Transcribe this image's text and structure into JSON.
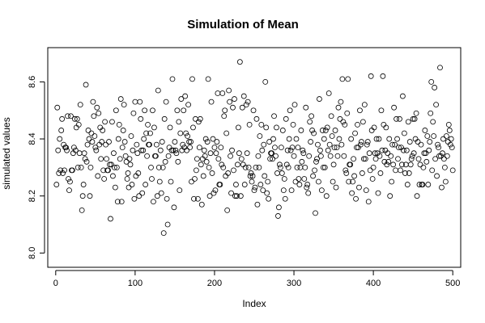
{
  "chart_data": {
    "type": "scatter",
    "title": "Simulation of Mean",
    "xlabel": "Index",
    "ylabel": "simulated values",
    "xlim": [
      -10,
      510
    ],
    "ylim": [
      7.95,
      8.72
    ],
    "x_ticks": [
      0,
      100,
      200,
      300,
      400,
      500
    ],
    "y_ticks": [
      8.0,
      8.2,
      8.4,
      8.6
    ],
    "x_tick_labels": [
      "0",
      "100",
      "200",
      "300",
      "400",
      "500"
    ],
    "y_tick_labels": [
      "8.0",
      "8.2",
      "8.4",
      "8.6"
    ],
    "grid": false,
    "legend": "none",
    "marker": "open-circle",
    "point_color": "#000000",
    "series": [
      {
        "values": [
          8.24,
          8.51,
          8.36,
          8.28,
          8.4,
          8.29,
          8.43,
          8.47,
          8.28,
          8.38,
          8.29,
          8.37,
          8.37,
          8.36,
          8.48,
          8.26,
          8.22,
          8.25,
          8.48,
          8.29,
          8.29,
          8.35,
          8.37,
          8.47,
          8.36,
          8.44,
          8.47,
          8.3,
          8.45,
          8.35,
          8.52,
          8.3,
          8.15,
          8.2,
          8.24,
          8.35,
          8.33,
          8.59,
          8.32,
          8.38,
          8.43,
          8.4,
          8.2,
          8.3,
          8.42,
          8.39,
          8.53,
          8.48,
          8.41,
          8.37,
          8.36,
          8.51,
          8.27,
          8.49,
          8.38,
          8.44,
          8.33,
          8.39,
          8.43,
          8.29,
          8.26,
          8.46,
          8.38,
          8.33,
          8.29,
          8.29,
          8.39,
          8.31,
          8.12,
          8.31,
          8.46,
          8.27,
          8.35,
          8.3,
          8.23,
          8.5,
          8.3,
          8.18,
          8.4,
          8.45,
          8.33,
          8.54,
          8.18,
          8.37,
          8.43,
          8.52,
          8.39,
          8.34,
          8.32,
          8.26,
          8.28,
          8.23,
          8.33,
          8.31,
          8.41,
          8.24,
          8.36,
          8.49,
          8.19,
          8.53,
          8.27,
          8.38,
          8.35,
          8.28,
          8.2,
          8.53,
          8.47,
          8.36,
          8.21,
          8.36,
          8.4,
          8.5,
          8.24,
          8.42,
          8.34,
          8.45,
          8.38,
          8.38,
          8.42,
          8.3,
          8.26,
          8.5,
          8.18,
          8.44,
          8.34,
          8.34,
          8.38,
          8.2,
          8.57,
          8.3,
          8.25,
          8.36,
          8.21,
          8.39,
          8.3,
          8.07,
          8.47,
          8.32,
          8.53,
          8.19,
          8.1,
          8.34,
          8.37,
          8.44,
          8.25,
          8.36,
          8.61,
          8.36,
          8.16,
          8.39,
          8.36,
          8.35,
          8.5,
          8.32,
          8.46,
          8.22,
          8.42,
          8.54,
          8.36,
          8.38,
          8.5,
          8.37,
          8.55,
          8.42,
          8.36,
          8.41,
          8.52,
          8.39,
          8.37,
          8.39,
          8.25,
          8.61,
          8.44,
          8.19,
          8.26,
          8.47,
          8.29,
          8.33,
          8.19,
          8.46,
          8.37,
          8.47,
          8.31,
          8.17,
          8.33,
          8.27,
          8.36,
          8.34,
          8.4,
          8.32,
          8.39,
          8.61,
          8.3,
          8.2,
          8.35,
          8.53,
          8.28,
          8.4,
          8.21,
          8.37,
          8.22,
          8.35,
          8.39,
          8.56,
          8.33,
          8.24,
          8.24,
          8.37,
          8.31,
          8.56,
          8.3,
          8.48,
          8.5,
          8.27,
          8.42,
          8.15,
          8.28,
          8.57,
          8.53,
          8.34,
          8.21,
          8.36,
          8.51,
          8.29,
          8.54,
          8.2,
          8.24,
          8.2,
          8.31,
          8.44,
          8.35,
          8.67,
          8.2,
          8.33,
          8.51,
          8.31,
          8.55,
          8.24,
          8.3,
          8.52,
          8.35,
          8.53,
          8.3,
          8.45,
          8.27,
          8.28,
          8.25,
          8.27,
          8.5,
          8.22,
          8.23,
          8.3,
          8.47,
          8.17,
          8.34,
          8.3,
          8.41,
          8.24,
          8.45,
          8.36,
          8.22,
          8.38,
          8.27,
          8.6,
          8.44,
          8.21,
          8.25,
          8.19,
          8.39,
          8.33,
          8.35,
          8.35,
          8.33,
          8.4,
          8.48,
          8.37,
          8.34,
          8.44,
          8.28,
          8.13,
          8.16,
          8.31,
          8.3,
          8.37,
          8.28,
          8.43,
          8.22,
          8.26,
          8.19,
          8.47,
          8.31,
          8.36,
          8.3,
          8.4,
          8.5,
          8.36,
          8.22,
          8.37,
          8.45,
          8.34,
          8.52,
          8.25,
          8.4,
          8.3,
          8.37,
          8.26,
          8.24,
          8.3,
          8.43,
          8.32,
          8.36,
          8.35,
          8.26,
          8.3,
          8.51,
          8.23,
          8.24,
          8.21,
          8.34,
          8.46,
          8.39,
          8.48,
          8.43,
          8.27,
          8.42,
          8.29,
          8.14,
          8.32,
          8.33,
          8.38,
          8.25,
          8.54,
          8.36,
          8.34,
          8.22,
          8.43,
          8.3,
          8.4,
          8.3,
          8.43,
          8.2,
          8.44,
          8.36,
          8.56,
          8.38,
          8.34,
          8.48,
          8.41,
          8.25,
          8.31,
          8.37,
          8.43,
          8.23,
          8.37,
          8.34,
          8.51,
          8.4,
          8.47,
          8.53,
          8.38,
          8.61,
          8.46,
          8.34,
          8.45,
          8.29,
          8.28,
          8.49,
          8.61,
          8.25,
          8.31,
          8.31,
          8.4,
          8.21,
          8.25,
          8.33,
          8.27,
          8.42,
          8.19,
          8.37,
          8.45,
          8.37,
          8.23,
          8.5,
          8.38,
          8.39,
          8.28,
          8.46,
          8.33,
          8.52,
          8.33,
          8.22,
          8.38,
          8.39,
          8.18,
          8.35,
          8.29,
          8.62,
          8.43,
          8.26,
          8.3,
          8.44,
          8.35,
          8.33,
          8.4,
          8.35,
          8.21,
          8.4,
          8.34,
          8.28,
          8.5,
          8.36,
          8.62,
          8.45,
          8.32,
          8.36,
          8.44,
          8.31,
          8.35,
          8.32,
          8.4,
          8.2,
          8.34,
          8.25,
          8.38,
          8.31,
          8.51,
          8.38,
          8.29,
          8.47,
          8.4,
          8.33,
          8.37,
          8.47,
          8.29,
          8.37,
          8.31,
          8.55,
          8.36,
          8.42,
          8.28,
          8.31,
          8.36,
          8.24,
          8.46,
          8.28,
          8.39,
          8.31,
          8.33,
          8.34,
          8.47,
          8.35,
          8.47,
          8.4,
          8.49,
          8.2,
          8.39,
          8.33,
          8.24,
          8.31,
          8.38,
          8.24,
          8.24,
          8.3,
          8.35,
          8.43,
          8.35,
          8.32,
          8.41,
          8.24,
          8.36,
          8.39,
          8.49,
          8.6,
          8.29,
          8.46,
          8.41,
          8.58,
          8.33,
          8.52,
          8.27,
          8.38,
          8.37,
          8.34,
          8.65,
          8.34,
          8.23,
          8.35,
          8.4,
          8.33,
          8.3,
          8.25,
          8.41,
          8.34,
          8.39,
          8.45,
          8.43,
          8.38,
          8.4,
          8.37,
          8.29
        ]
      }
    ]
  }
}
